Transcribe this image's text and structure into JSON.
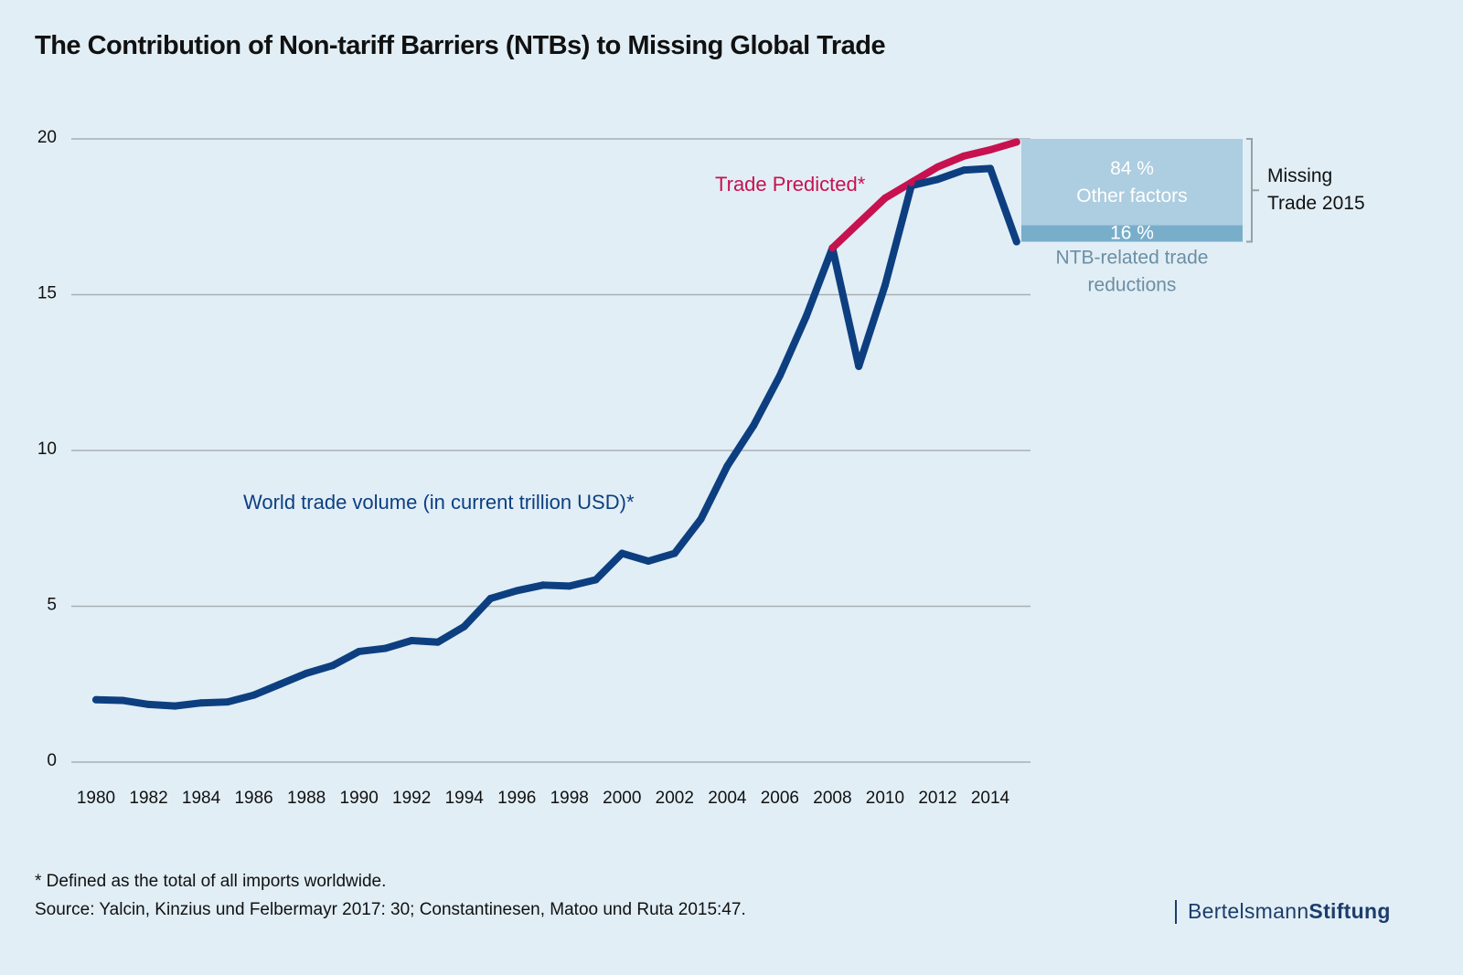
{
  "title": "The Contribution of Non-tariff Barriers (NTBs) to Missing Global Trade",
  "footnote": "* Defined as the total of all imports worldwide.",
  "source": "Source: Yalcin, Kinzius und Felbermayr 2017: 30; Constantinesen, Matoo und Ruta 2015:47.",
  "logo": {
    "regular": "Bertelsmann",
    "bold": "Stiftung"
  },
  "colors": {
    "background": "#e1eef6",
    "world_trade": "#0d3f80",
    "predicted": "#c8114f",
    "other_factors": "#adcde0",
    "ntb": "#79aecb",
    "ntb_label": "#6d8ea3",
    "grid": "#a9afb3"
  },
  "chart_data": {
    "type": "line",
    "title": "The Contribution of Non-tariff Barriers (NTBs) to Missing Global Trade",
    "xlabel": "",
    "ylabel": "",
    "ylim": [
      0,
      20
    ],
    "xlim": [
      1980,
      2015
    ],
    "grid": true,
    "y_ticks": [
      0,
      5,
      10,
      15,
      20
    ],
    "x_ticks": [
      1980,
      1982,
      1984,
      1986,
      1988,
      1990,
      1992,
      1994,
      1996,
      1998,
      2000,
      2002,
      2004,
      2006,
      2008,
      2010,
      2012,
      2014
    ],
    "series": [
      {
        "name": "World trade volume (in current trillion USD)*",
        "color": "#0d3f80",
        "x": [
          1980,
          1981,
          1982,
          1983,
          1984,
          1985,
          1986,
          1987,
          1988,
          1989,
          1990,
          1991,
          1992,
          1993,
          1994,
          1995,
          1996,
          1997,
          1998,
          1999,
          2000,
          2001,
          2002,
          2003,
          2004,
          2005,
          2006,
          2007,
          2008,
          2009,
          2010,
          2011,
          2012,
          2013,
          2014,
          2015
        ],
        "values": [
          2.0,
          1.98,
          1.85,
          1.8,
          1.9,
          1.93,
          2.15,
          2.5,
          2.85,
          3.1,
          3.55,
          3.65,
          3.9,
          3.85,
          4.35,
          5.25,
          5.5,
          5.68,
          5.65,
          5.85,
          6.7,
          6.45,
          6.7,
          7.8,
          9.5,
          10.8,
          12.4,
          14.3,
          16.5,
          12.7,
          15.3,
          18.5,
          18.7,
          19.0,
          19.05,
          16.7
        ]
      },
      {
        "name": "Trade Predicted*",
        "color": "#c8114f",
        "x": [
          2008,
          2009,
          2010,
          2011,
          2012,
          2013,
          2014,
          2015
        ],
        "values": [
          16.5,
          17.3,
          18.1,
          18.6,
          19.1,
          19.45,
          19.65,
          19.9
        ]
      }
    ],
    "annotations": {
      "world_trade_label": "World trade volume (in current trillion USD)*",
      "predicted_label": "Trade Predicted*",
      "missing_trade": {
        "label_line1": "Missing",
        "label_line2": "Trade 2015",
        "range": [
          16.7,
          20.0
        ],
        "segments": [
          {
            "name": "Other factors",
            "percent": "84 %",
            "label": "Other factors",
            "share": 0.84
          },
          {
            "name": "NTB-related trade reductions",
            "percent": "16 %",
            "label_line1": "NTB-related trade",
            "label_line2": "reductions",
            "share": 0.16
          }
        ]
      }
    }
  }
}
